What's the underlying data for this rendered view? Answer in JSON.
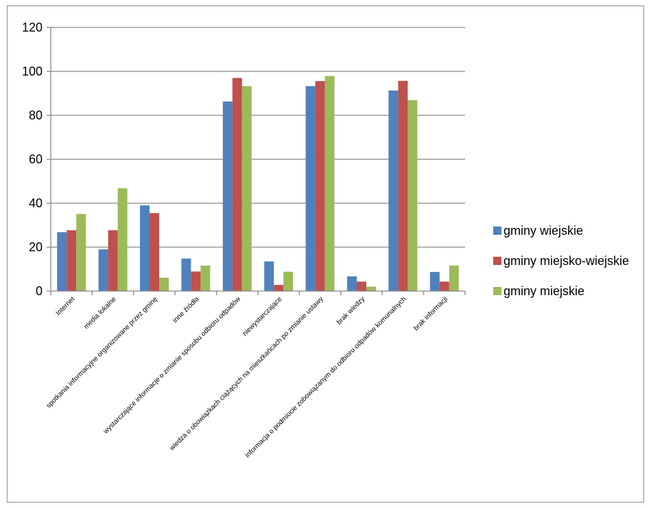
{
  "chart_data": {
    "type": "bar",
    "title": "",
    "xlabel": "",
    "ylabel": "",
    "ylim": [
      0,
      120
    ],
    "yticks": [
      0,
      20,
      40,
      60,
      80,
      100,
      120
    ],
    "grid": true,
    "legend_position": "right",
    "categories": [
      "Internet",
      "media lokalne",
      "spotkania informacyjne organizowane przez gminę",
      "inne źródła",
      "wystarczające informacje o zmianie sposobu odbioru odpadów",
      "niewystarczające",
      "wiedza o obowiązkach ciążących na mieszkańcach po zmianie ustawy",
      "brak wiedzy",
      "informacja o podmiocie zobowiązanym do odbioru odpadów komunalnych",
      "brak informacji"
    ],
    "series": [
      {
        "name": "gminy wiejskie",
        "color": "#4F81BD",
        "values": [
          26.8,
          19.0,
          39.0,
          14.8,
          86.3,
          13.5,
          93.3,
          6.7,
          91.3,
          8.7
        ]
      },
      {
        "name": "gminy miejsko-wiejskie",
        "color": "#C0504D",
        "values": [
          27.7,
          27.7,
          35.5,
          8.9,
          97.0,
          2.8,
          95.6,
          4.3,
          95.7,
          4.3
        ]
      },
      {
        "name": "gminy miejskie",
        "color": "#9BBB59",
        "values": [
          35.1,
          46.8,
          6.1,
          11.6,
          93.3,
          8.8,
          97.9,
          2.0,
          86.9,
          11.6
        ]
      }
    ]
  }
}
